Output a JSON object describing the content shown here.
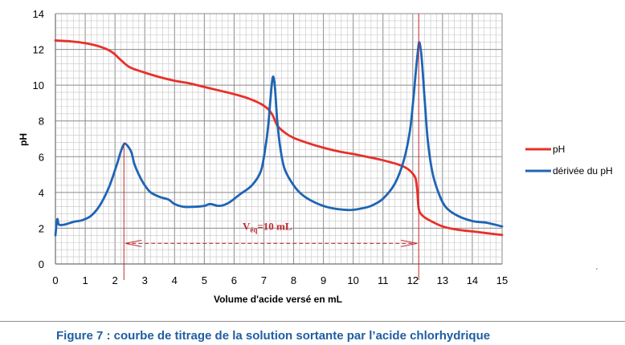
{
  "caption": "Figure 7 : courbe de titrage de la solution sortante par l’acide chlorhydrique",
  "chart_data": {
    "type": "line",
    "xlabel": "Volume d'acide versé en mL",
    "ylabel": "pH",
    "xlim": [
      0,
      15
    ],
    "ylim": [
      0,
      14
    ],
    "x_ticks": [
      0,
      1,
      2,
      3,
      4,
      5,
      6,
      7,
      8,
      9,
      10,
      11,
      12,
      13,
      14,
      15
    ],
    "y_ticks": [
      0,
      2,
      4,
      6,
      8,
      10,
      12,
      14
    ],
    "grid": true,
    "legend_position": "right",
    "series": [
      {
        "name": "pH",
        "color": "#e8302a",
        "points": [
          [
            0,
            12.5
          ],
          [
            0.5,
            12.45
          ],
          [
            1,
            12.35
          ],
          [
            1.5,
            12.15
          ],
          [
            1.9,
            11.85
          ],
          [
            2.2,
            11.4
          ],
          [
            2.5,
            11.0
          ],
          [
            3,
            10.7
          ],
          [
            3.5,
            10.45
          ],
          [
            4,
            10.25
          ],
          [
            4.5,
            10.1
          ],
          [
            5,
            9.9
          ],
          [
            5.5,
            9.7
          ],
          [
            6,
            9.5
          ],
          [
            6.5,
            9.25
          ],
          [
            6.9,
            8.95
          ],
          [
            7.15,
            8.65
          ],
          [
            7.3,
            8.3
          ],
          [
            7.45,
            7.75
          ],
          [
            7.7,
            7.35
          ],
          [
            8,
            7.05
          ],
          [
            8.5,
            6.75
          ],
          [
            9,
            6.5
          ],
          [
            9.5,
            6.3
          ],
          [
            10,
            6.15
          ],
          [
            10.5,
            5.98
          ],
          [
            11,
            5.8
          ],
          [
            11.5,
            5.57
          ],
          [
            11.8,
            5.35
          ],
          [
            12,
            5.05
          ],
          [
            12.1,
            4.75
          ],
          [
            12.15,
            4.1
          ],
          [
            12.2,
            3.1
          ],
          [
            12.3,
            2.75
          ],
          [
            12.5,
            2.5
          ],
          [
            13,
            2.1
          ],
          [
            13.5,
            1.92
          ],
          [
            14,
            1.82
          ],
          [
            14.5,
            1.72
          ],
          [
            15,
            1.62
          ]
        ]
      },
      {
        "name": "dérivée du pH",
        "color": "#1f64b4",
        "points": [
          [
            0,
            1.6
          ],
          [
            0.06,
            2.5
          ],
          [
            0.12,
            2.2
          ],
          [
            0.3,
            2.2
          ],
          [
            0.6,
            2.35
          ],
          [
            0.9,
            2.45
          ],
          [
            1.2,
            2.7
          ],
          [
            1.5,
            3.3
          ],
          [
            1.8,
            4.3
          ],
          [
            2.05,
            5.5
          ],
          [
            2.2,
            6.3
          ],
          [
            2.3,
            6.7
          ],
          [
            2.4,
            6.65
          ],
          [
            2.55,
            6.25
          ],
          [
            2.65,
            5.6
          ],
          [
            2.8,
            5.0
          ],
          [
            3,
            4.4
          ],
          [
            3.2,
            4.0
          ],
          [
            3.5,
            3.75
          ],
          [
            3.8,
            3.6
          ],
          [
            4,
            3.35
          ],
          [
            4.3,
            3.2
          ],
          [
            4.7,
            3.2
          ],
          [
            5,
            3.25
          ],
          [
            5.2,
            3.35
          ],
          [
            5.5,
            3.25
          ],
          [
            5.8,
            3.4
          ],
          [
            6.2,
            3.9
          ],
          [
            6.6,
            4.4
          ],
          [
            6.9,
            5.2
          ],
          [
            7.05,
            6.5
          ],
          [
            7.15,
            7.8
          ],
          [
            7.22,
            9.2
          ],
          [
            7.3,
            10.45
          ],
          [
            7.37,
            9.9
          ],
          [
            7.45,
            8.0
          ],
          [
            7.55,
            6.5
          ],
          [
            7.7,
            5.3
          ],
          [
            8,
            4.4
          ],
          [
            8.3,
            3.85
          ],
          [
            8.7,
            3.45
          ],
          [
            9.2,
            3.15
          ],
          [
            9.8,
            3.02
          ],
          [
            10.2,
            3.08
          ],
          [
            10.6,
            3.25
          ],
          [
            11,
            3.65
          ],
          [
            11.4,
            4.5
          ],
          [
            11.7,
            5.8
          ],
          [
            11.9,
            7.4
          ],
          [
            12.02,
            9.2
          ],
          [
            12.1,
            10.7
          ],
          [
            12.16,
            11.7
          ],
          [
            12.22,
            12.4
          ],
          [
            12.3,
            11.5
          ],
          [
            12.4,
            9.2
          ],
          [
            12.5,
            7.0
          ],
          [
            12.65,
            5.2
          ],
          [
            12.85,
            4.05
          ],
          [
            13.1,
            3.2
          ],
          [
            13.5,
            2.7
          ],
          [
            14,
            2.4
          ],
          [
            14.5,
            2.3
          ],
          [
            15,
            2.1
          ]
        ]
      }
    ],
    "annotations": {
      "veq_main": "V",
      "veq_sub": "éq",
      "veq_rest": "=10 mL",
      "veq_start_x": 2.3,
      "veq_end_x": 12.2,
      "veq_arrow_y": 1.15
    },
    "tick_mark": "ˏ"
  }
}
